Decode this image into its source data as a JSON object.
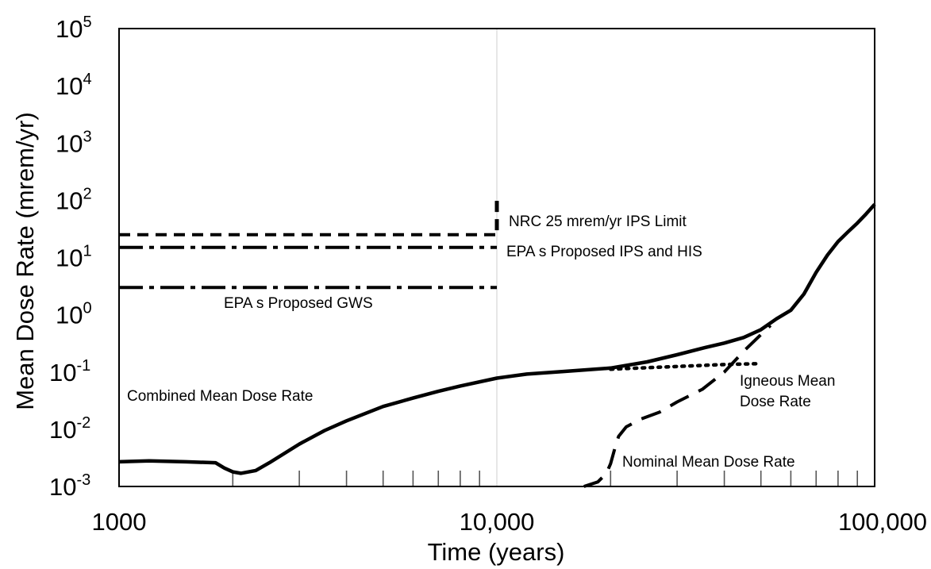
{
  "chart_data": {
    "type": "line",
    "title": "",
    "xlabel": "Time (years)",
    "ylabel": "Mean Dose Rate (mrem/yr)",
    "x_scale": "log",
    "y_scale": "log",
    "xlim": [
      1000,
      100000
    ],
    "ylim": [
      0.001,
      100000
    ],
    "x_ticks": [
      {
        "value": 1000,
        "label": "1000"
      },
      {
        "value": 10000,
        "label": "10,000"
      },
      {
        "value": 100000,
        "label": "100,000"
      }
    ],
    "y_ticks": [
      {
        "value": 0.001,
        "base": "10",
        "exp": "-3"
      },
      {
        "value": 0.01,
        "base": "10",
        "exp": "-2"
      },
      {
        "value": 0.1,
        "base": "10",
        "exp": "-1"
      },
      {
        "value": 1,
        "base": "10",
        "exp": "0"
      },
      {
        "value": 10,
        "base": "10",
        "exp": "1"
      },
      {
        "value": 100,
        "base": "10",
        "exp": "2"
      },
      {
        "value": 1000,
        "base": "10",
        "exp": "3"
      },
      {
        "value": 10000,
        "base": "10",
        "exp": "4"
      },
      {
        "value": 100000,
        "base": "10",
        "exp": "5"
      }
    ],
    "minor_x_ticks": [
      2000,
      3000,
      4000,
      5000,
      6000,
      7000,
      8000,
      9000,
      20000,
      30000,
      40000,
      50000,
      60000,
      70000,
      80000,
      90000
    ],
    "grid": "vertical line at 10,000",
    "series": [
      {
        "name": "Combined Mean Dose Rate",
        "style": "solid",
        "points": [
          [
            1000,
            0.0027
          ],
          [
            1200,
            0.0028
          ],
          [
            1500,
            0.0027
          ],
          [
            1800,
            0.0026
          ],
          [
            1900,
            0.0021
          ],
          [
            2000,
            0.0018
          ],
          [
            2100,
            0.0017
          ],
          [
            2300,
            0.0019
          ],
          [
            2500,
            0.0026
          ],
          [
            3000,
            0.0055
          ],
          [
            3500,
            0.0095
          ],
          [
            4000,
            0.014
          ],
          [
            5000,
            0.025
          ],
          [
            6000,
            0.035
          ],
          [
            7000,
            0.046
          ],
          [
            8000,
            0.057
          ],
          [
            10000,
            0.078
          ],
          [
            12000,
            0.092
          ],
          [
            15000,
            0.102
          ],
          [
            20000,
            0.117
          ],
          [
            25000,
            0.15
          ],
          [
            30000,
            0.2
          ],
          [
            35000,
            0.26
          ],
          [
            40000,
            0.32
          ],
          [
            45000,
            0.4
          ],
          [
            50000,
            0.55
          ],
          [
            55000,
            0.85
          ],
          [
            60000,
            1.2
          ],
          [
            65000,
            2.3
          ],
          [
            70000,
            5.5
          ],
          [
            75000,
            11
          ],
          [
            80000,
            19
          ],
          [
            85000,
            28
          ],
          [
            90000,
            40
          ],
          [
            95000,
            58
          ],
          [
            100000,
            85
          ]
        ]
      },
      {
        "name": "Nominal Mean Dose Rate",
        "style": "long-dash",
        "points": [
          [
            17000,
            0.001
          ],
          [
            18500,
            0.0012
          ],
          [
            19500,
            0.0017
          ],
          [
            20000,
            0.0025
          ],
          [
            20500,
            0.0045
          ],
          [
            21000,
            0.0075
          ],
          [
            22000,
            0.011
          ],
          [
            24000,
            0.015
          ],
          [
            27000,
            0.02
          ],
          [
            30000,
            0.03
          ],
          [
            35000,
            0.05
          ],
          [
            40000,
            0.1
          ],
          [
            45000,
            0.23
          ],
          [
            50000,
            0.45
          ],
          [
            53000,
            0.65
          ]
        ]
      },
      {
        "name": "Igneous Mean Dose Rate",
        "style": "dotted",
        "points": [
          [
            20000,
            0.112
          ],
          [
            30000,
            0.125
          ],
          [
            40000,
            0.135
          ],
          [
            50000,
            0.14
          ]
        ]
      }
    ],
    "reference_lines": [
      {
        "name": "NRC 25 mrem/yr IPS Limit",
        "style": "short-dash",
        "value": 25,
        "x": [
          1000,
          10000
        ]
      },
      {
        "name": "EPA s Proposed IPS and HIS",
        "style": "dash-dot",
        "value": 15,
        "x": [
          1000,
          10000
        ]
      },
      {
        "name": "EPA s Proposed GWS",
        "style": "dash-dot",
        "value": 3,
        "x": [
          1000,
          10000
        ]
      },
      {
        "name": "10,000 year marker",
        "style": "short-dash",
        "x_value": 10000,
        "y": [
          30,
          120
        ]
      }
    ],
    "annotations": {
      "nrc": "NRC 25 mrem/yr IPS Limit",
      "epa_ips_his": "EPA s Proposed IPS and HIS",
      "epa_gws": "EPA s Proposed GWS",
      "combined": "Combined Mean Dose Rate",
      "igneous_line1": "Igneous Mean",
      "igneous_line2": "Dose Rate",
      "nominal": "Nominal Mean Dose Rate"
    },
    "legend": "none (series labelled by in-plot annotations)"
  }
}
